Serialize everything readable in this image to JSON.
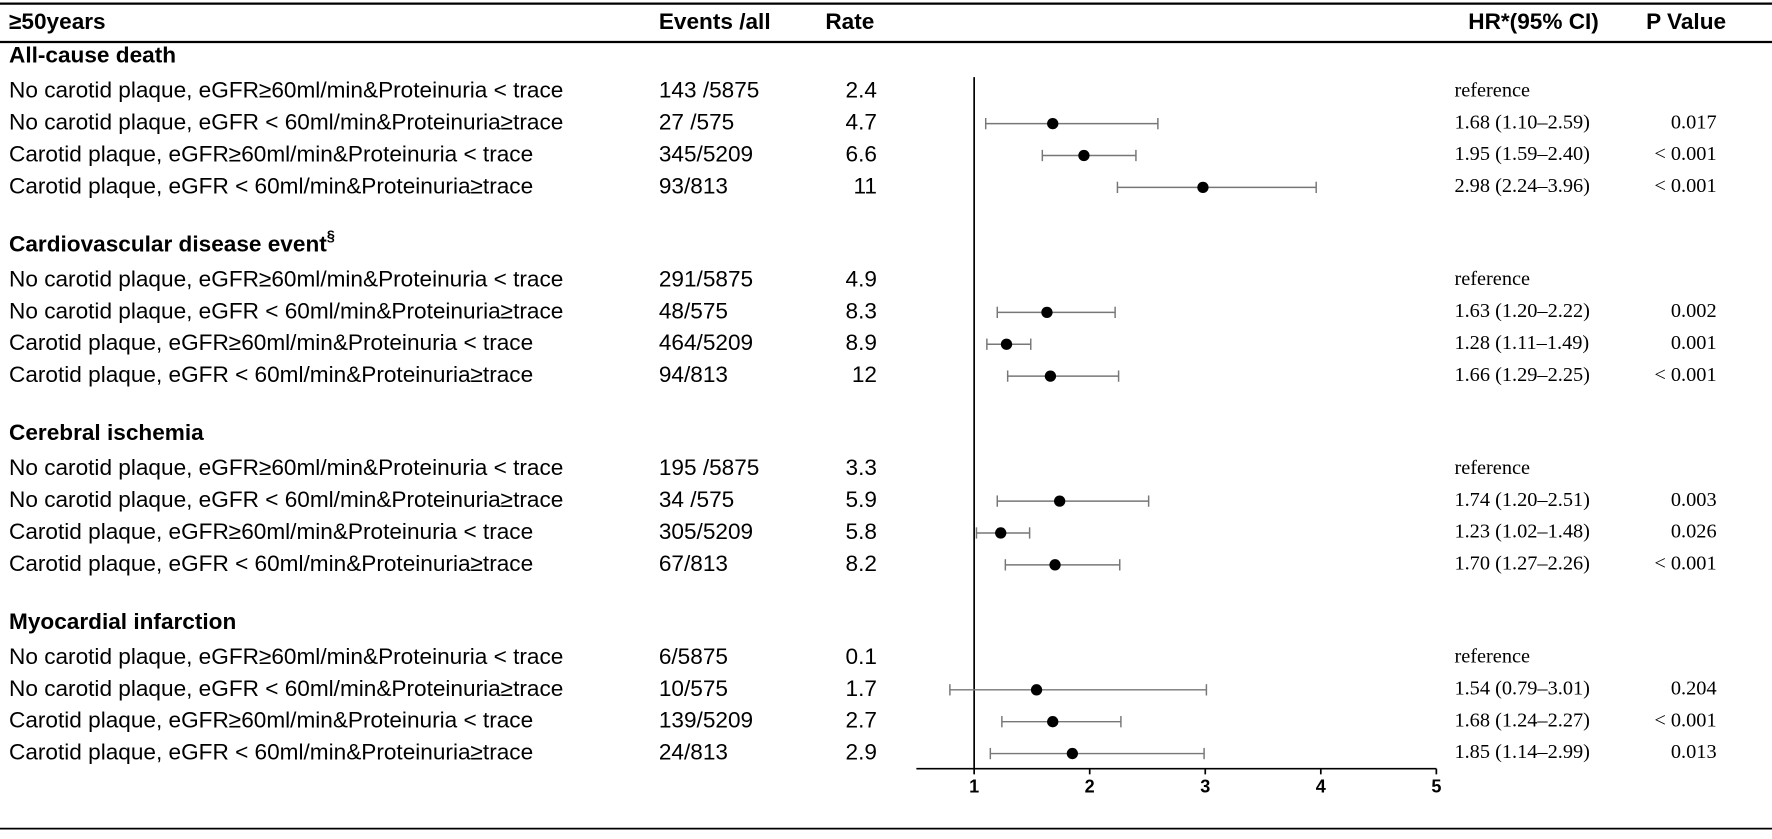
{
  "chart_data": {
    "type": "forest",
    "headers": {
      "label": "≥50years",
      "events": "Events /all",
      "rate": "Rate",
      "hr": "HR*(95% CI)",
      "p": "P Value"
    },
    "xlim": [
      0.5,
      5
    ],
    "xticks": [
      1,
      2,
      3,
      4,
      5
    ],
    "reference_line": 1,
    "marker_color": "#000000",
    "ci_color": "#777777",
    "groups": [
      {
        "title": "All-cause death",
        "rows": [
          {
            "label": "No carotid plaque, eGFR≥60ml/min&Proteinuria < trace",
            "events": "143 /5875",
            "rate": 2.4,
            "hr_text": "reference"
          },
          {
            "label": "No carotid plaque, eGFR < 60ml/min&Proteinuria≥trace",
            "events": "27 /575",
            "rate": 4.7,
            "hr": 1.68,
            "lo": 1.1,
            "hi": 2.59,
            "hr_text": "1.68 (1.10–2.59)",
            "p": "0.017"
          },
          {
            "label": "Carotid plaque, eGFR≥60ml/min&Proteinuria < trace",
            "events": "345/5209",
            "rate": 6.6,
            "hr": 1.95,
            "lo": 1.59,
            "hi": 2.4,
            "hr_text": "1.95 (1.59–2.40)",
            "p": "< 0.001"
          },
          {
            "label": "Carotid plaque, eGFR < 60ml/min&Proteinuria≥trace",
            "events": "93/813",
            "rate": 11,
            "hr": 2.98,
            "lo": 2.24,
            "hi": 3.96,
            "hr_text": "2.98 (2.24–3.96)",
            "p": "< 0.001"
          }
        ]
      },
      {
        "title": "Cardiovascular disease event",
        "title_sup": "§",
        "rows": [
          {
            "label": "No carotid plaque, eGFR≥60ml/min&Proteinuria < trace",
            "events": "291/5875",
            "rate": 4.9,
            "hr_text": "reference"
          },
          {
            "label": "No carotid plaque, eGFR < 60ml/min&Proteinuria≥trace",
            "events": "48/575",
            "rate": 8.3,
            "hr": 1.63,
            "lo": 1.2,
            "hi": 2.22,
            "hr_text": "1.63 (1.20–2.22)",
            "p": "0.002"
          },
          {
            "label": "Carotid plaque, eGFR≥60ml/min&Proteinuria < trace",
            "events": "464/5209",
            "rate": 8.9,
            "hr": 1.28,
            "lo": 1.11,
            "hi": 1.49,
            "hr_text": "1.28 (1.11–1.49)",
            "p": "0.001"
          },
          {
            "label": "Carotid plaque, eGFR < 60ml/min&Proteinuria≥trace",
            "events": "94/813",
            "rate": 12,
            "hr": 1.66,
            "lo": 1.29,
            "hi": 2.25,
            "hr_text": "1.66 (1.29–2.25)",
            "p": "< 0.001"
          }
        ]
      },
      {
        "title": "Cerebral ischemia",
        "rows": [
          {
            "label": "No carotid plaque, eGFR≥60ml/min&Proteinuria < trace",
            "events": "195 /5875",
            "rate": 3.3,
            "hr_text": "reference"
          },
          {
            "label": "No carotid plaque, eGFR < 60ml/min&Proteinuria≥trace",
            "events": "34 /575",
            "rate": 5.9,
            "hr": 1.74,
            "lo": 1.2,
            "hi": 2.51,
            "hr_text": "1.74 (1.20–2.51)",
            "p": "0.003"
          },
          {
            "label": "Carotid plaque, eGFR≥60ml/min&Proteinuria < trace",
            "events": "305/5209",
            "rate": 5.8,
            "hr": 1.23,
            "lo": 1.02,
            "hi": 1.48,
            "hr_text": "1.23 (1.02–1.48)",
            "p": "0.026"
          },
          {
            "label": "Carotid plaque, eGFR < 60ml/min&Proteinuria≥trace",
            "events": "67/813",
            "rate": 8.2,
            "hr": 1.7,
            "lo": 1.27,
            "hi": 2.26,
            "hr_text": "1.70 (1.27–2.26)",
            "p": "< 0.001"
          }
        ]
      },
      {
        "title": "Myocardial infarction",
        "rows": [
          {
            "label": "No carotid plaque, eGFR≥60ml/min&Proteinuria < trace",
            "events": "6/5875",
            "rate": 0.1,
            "hr_text": "reference"
          },
          {
            "label": "No carotid plaque, eGFR < 60ml/min&Proteinuria≥trace",
            "events": "10/575",
            "rate": 1.7,
            "hr": 1.54,
            "lo": 0.79,
            "hi": 3.01,
            "hr_text": "1.54 (0.79–3.01)",
            "p": "0.204"
          },
          {
            "label": "Carotid plaque, eGFR≥60ml/min&Proteinuria < trace",
            "events": "139/5209",
            "rate": 2.7,
            "hr": 1.68,
            "lo": 1.24,
            "hi": 2.27,
            "hr_text": "1.68 (1.24–2.27)",
            "p": "< 0.001"
          },
          {
            "label": "Carotid plaque, eGFR < 60ml/min&Proteinuria≥trace",
            "events": "24/813",
            "rate": 2.9,
            "hr": 1.85,
            "lo": 1.14,
            "hi": 2.99,
            "hr_text": "1.85 (1.14–2.99)",
            "p": "0.013"
          }
        ]
      }
    ]
  }
}
